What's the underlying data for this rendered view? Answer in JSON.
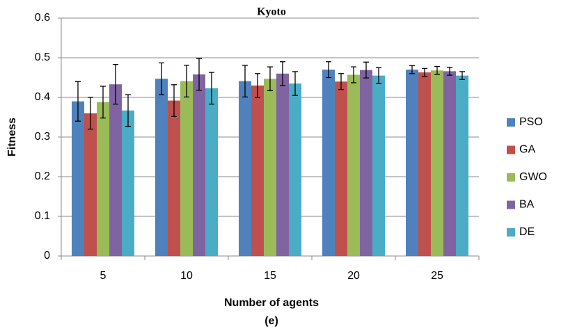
{
  "chart_data": {
    "type": "bar",
    "title": "Kyoto",
    "x_label": "Number of agents",
    "caption": "(e)",
    "y_label": "Fitness",
    "categories": [
      "5",
      "10",
      "15",
      "20",
      "25"
    ],
    "series": [
      {
        "name": "PSO",
        "color": "#4f81bd",
        "values": [
          0.39,
          0.447,
          0.441,
          0.47,
          0.47
        ],
        "errors": [
          0.05,
          0.04,
          0.04,
          0.02,
          0.01
        ]
      },
      {
        "name": "GA",
        "color": "#c0504d",
        "values": [
          0.36,
          0.392,
          0.43,
          0.44,
          0.463
        ],
        "errors": [
          0.04,
          0.04,
          0.03,
          0.02,
          0.01
        ]
      },
      {
        "name": "GWO",
        "color": "#9bbb59",
        "values": [
          0.388,
          0.441,
          0.447,
          0.457,
          0.468
        ],
        "errors": [
          0.04,
          0.04,
          0.03,
          0.02,
          0.01
        ]
      },
      {
        "name": "BA",
        "color": "#8064a2",
        "values": [
          0.433,
          0.458,
          0.46,
          0.469,
          0.466
        ],
        "errors": [
          0.05,
          0.04,
          0.03,
          0.02,
          0.01
        ]
      },
      {
        "name": "DE",
        "color": "#4bacc6",
        "values": [
          0.367,
          0.423,
          0.435,
          0.455,
          0.455
        ],
        "errors": [
          0.04,
          0.04,
          0.03,
          0.02,
          0.01
        ]
      }
    ],
    "ylim": [
      0,
      0.6
    ],
    "yticks": [
      0,
      0.1,
      0.2,
      0.3,
      0.4,
      0.5,
      0.6
    ],
    "grid": true,
    "legend": "right"
  }
}
